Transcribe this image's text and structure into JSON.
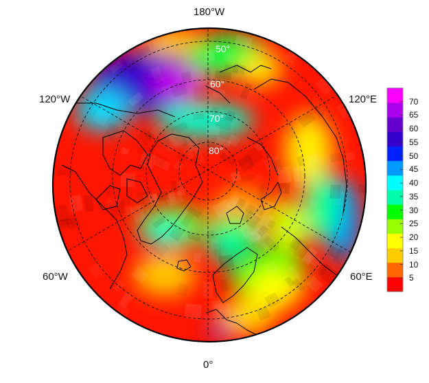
{
  "map": {
    "projection": "north polar stereographic",
    "longitude_labels": {
      "top": "180°W",
      "left_upper": "120°W",
      "right_upper": "120°E",
      "left_lower": "60°W",
      "right_lower": "60°E",
      "bottom": "0°"
    },
    "latitude_labels": [
      "50°",
      "60°",
      "70°",
      "80°"
    ],
    "colorbar": {
      "ticks": [
        "5",
        "10",
        "15",
        "20",
        "25",
        "30",
        "35",
        "40",
        "45",
        "50",
        "55",
        "60",
        "65",
        "70"
      ],
      "min": 0,
      "max": 75,
      "colors": [
        "#ff0000",
        "#ff6600",
        "#ffcc00",
        "#ffff00",
        "#99ff00",
        "#00ff00",
        "#00ffaa",
        "#00ffff",
        "#0099ff",
        "#0022ff",
        "#3300cc",
        "#6600cc",
        "#aa00ee",
        "#ff00ff"
      ]
    }
  }
}
